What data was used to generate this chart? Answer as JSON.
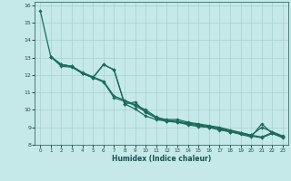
{
  "xlabel": "Humidex (Indice chaleur)",
  "bg_color": "#c5e8e8",
  "grid_color": "#a8d0d0",
  "line_color": "#1a6b5a",
  "xlim": [
    -0.5,
    23.5
  ],
  "ylim": [
    8,
    16.2
  ],
  "xticks": [
    0,
    1,
    2,
    3,
    4,
    5,
    6,
    7,
    8,
    9,
    10,
    11,
    12,
    13,
    14,
    15,
    16,
    17,
    18,
    19,
    20,
    21,
    22,
    23
  ],
  "yticks": [
    8,
    9,
    10,
    11,
    12,
    13,
    14,
    15,
    16
  ],
  "lines": [
    {
      "x": [
        0,
        1,
        2,
        3,
        4,
        5,
        6,
        7,
        8,
        9,
        10,
        11,
        12,
        13,
        14,
        15,
        16,
        17,
        18,
        19,
        20,
        21,
        22,
        23
      ],
      "y": [
        15.7,
        13.05,
        12.6,
        12.5,
        12.1,
        11.85,
        12.6,
        12.3,
        10.35,
        10.05,
        9.65,
        9.45,
        9.35,
        9.3,
        9.15,
        9.05,
        9.0,
        8.85,
        8.75,
        8.6,
        8.45,
        9.2,
        8.65,
        8.45
      ]
    },
    {
      "x": [
        1,
        2,
        3,
        4,
        5,
        6,
        7,
        8,
        9,
        10,
        11,
        12,
        13,
        14,
        15,
        16,
        17,
        18,
        19,
        20,
        21,
        22,
        23
      ],
      "y": [
        13.05,
        12.6,
        12.5,
        12.1,
        11.85,
        12.6,
        12.3,
        10.35,
        10.45,
        9.85,
        9.55,
        9.45,
        9.45,
        9.3,
        9.2,
        9.1,
        9.0,
        8.85,
        8.7,
        8.55,
        9.0,
        8.75,
        8.5
      ]
    },
    {
      "x": [
        1,
        2,
        3,
        4,
        5,
        6,
        7,
        8,
        9,
        10,
        11,
        12,
        13,
        14,
        15,
        16,
        17,
        18,
        19,
        20,
        21,
        22,
        23
      ],
      "y": [
        13.05,
        12.6,
        12.5,
        12.15,
        11.9,
        11.65,
        10.8,
        10.55,
        10.3,
        10.0,
        9.6,
        9.4,
        9.35,
        9.25,
        9.15,
        9.05,
        8.95,
        8.8,
        8.7,
        8.55,
        8.45,
        8.7,
        8.45
      ]
    },
    {
      "x": [
        1,
        2,
        3,
        4,
        5,
        6,
        7,
        8,
        9,
        10,
        11,
        12,
        13,
        14,
        15,
        16,
        17,
        18,
        19,
        20,
        21,
        22,
        23
      ],
      "y": [
        13.05,
        12.5,
        12.45,
        12.1,
        11.85,
        11.6,
        10.7,
        10.5,
        10.25,
        9.9,
        9.55,
        9.35,
        9.3,
        9.2,
        9.1,
        9.0,
        8.9,
        8.75,
        8.65,
        8.5,
        8.4,
        8.65,
        8.4
      ]
    }
  ]
}
